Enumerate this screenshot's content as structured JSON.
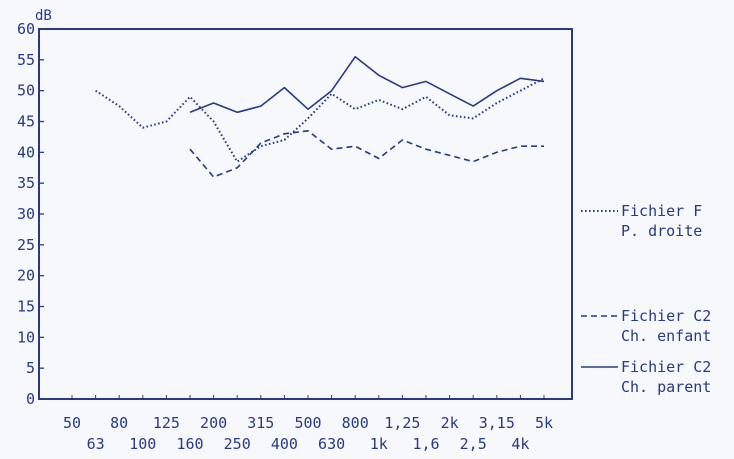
{
  "chart_data": {
    "type": "line",
    "title": "",
    "xlabel": "",
    "ylabel": "dB",
    "ylim": [
      0,
      60
    ],
    "y_ticks": [
      0,
      5,
      10,
      15,
      20,
      25,
      30,
      35,
      40,
      45,
      50,
      55,
      60
    ],
    "grid": false,
    "legend_position": "right",
    "categories": [
      "50",
      "63",
      "80",
      "100",
      "125",
      "160",
      "200",
      "250",
      "315",
      "400",
      "500",
      "630",
      "800",
      "1k",
      "1,25",
      "1,6",
      "2k",
      "2,5",
      "3,15",
      "4k",
      "5k"
    ],
    "series": [
      {
        "name": "Fichier F P. droite",
        "legend_lines": [
          "Fichier F",
          "P. droite"
        ],
        "style": "dotted",
        "values": [
          null,
          50,
          47.5,
          44,
          45,
          49,
          45,
          38.5,
          41,
          42,
          45.5,
          49.5,
          47,
          48.5,
          47,
          49,
          46,
          45.5,
          48,
          50,
          52
        ]
      },
      {
        "name": "Fichier C2 Ch. enfant",
        "legend_lines": [
          "Fichier C2",
          "Ch. enfant"
        ],
        "style": "dashed",
        "values": [
          null,
          null,
          null,
          null,
          null,
          40.5,
          36,
          37.5,
          41.5,
          43,
          43.5,
          40.5,
          41,
          39,
          42,
          40.5,
          39.5,
          38.5,
          40,
          41,
          41
        ]
      },
      {
        "name": "Fichier C2 Ch. parent",
        "legend_lines": [
          "Fichier C2",
          "Ch. parent"
        ],
        "style": "solid",
        "values": [
          null,
          null,
          null,
          null,
          null,
          46.5,
          48,
          46.5,
          47.5,
          50.5,
          47,
          50,
          55.5,
          52.5,
          50.5,
          51.5,
          49.5,
          47.5,
          50,
          52,
          51.5
        ]
      }
    ]
  },
  "colors": {
    "ink": "#263a86",
    "background": "#f6f8fb"
  }
}
